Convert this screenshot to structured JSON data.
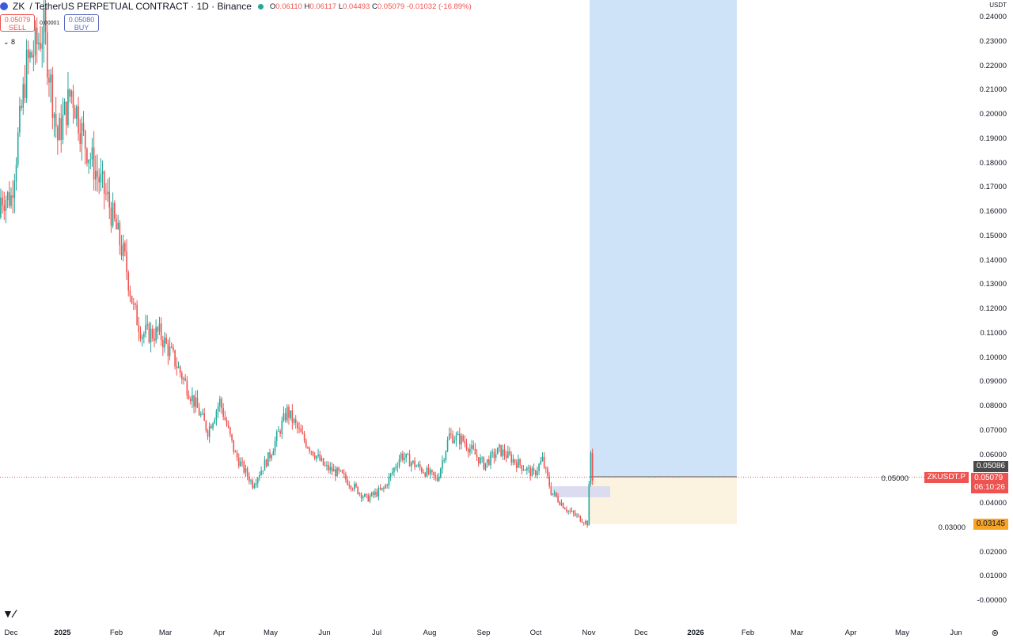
{
  "header": {
    "symbol": "ZK",
    "title": "/ TetherUS PERPETUAL CONTRACT · 1D · Binance",
    "open": "0.06110",
    "high": "0.06117",
    "low": "0.04493",
    "close": "0.05079",
    "change": "-0.01032 (-16.89%)",
    "o_label": "O",
    "h_label": "H",
    "l_label": "L",
    "c_label": "C"
  },
  "trade": {
    "sell_price": "0.05079",
    "sell_label": "SELL",
    "spread": "0.00001",
    "buy_price": "0.05080",
    "buy_label": "BUY",
    "collapse": "⌄ 8"
  },
  "currency": "USDT",
  "price_axis": [
    "0.24000",
    "0.23000",
    "0.22000",
    "0.21000",
    "0.20000",
    "0.19000",
    "0.18000",
    "0.17000",
    "0.16000",
    "0.15000",
    "0.14000",
    "0.13000",
    "0.12000",
    "0.11000",
    "0.10000",
    "0.09000",
    "0.08000",
    "0.07000",
    "0.06000",
    "0.05000",
    "0.04000",
    "0.03000",
    "0.02000",
    "0.01000",
    "-0.00000"
  ],
  "tags": {
    "high_marker": "0.05086",
    "symbol_tag": "ZKUSDT.P",
    "last_price": "0.05079",
    "countdown": "06:10:26",
    "stop_level": "0.03145"
  },
  "time_axis": [
    "Dec",
    "2025",
    "Feb",
    "Mar",
    "Apr",
    "May",
    "Jun",
    "Jul",
    "Aug",
    "Sep",
    "Oct",
    "Nov",
    "Dec",
    "2026",
    "Feb",
    "Mar",
    "Apr",
    "May",
    "Jun"
  ],
  "logo": "TV",
  "colors": {
    "up": "#26a69a",
    "down": "#ef5350",
    "target_zone": "#cfe3f8",
    "stop_zone": "#fbf2e0"
  },
  "chart_data": {
    "type": "candlestick",
    "ylim": [
      0,
      0.24
    ],
    "anchors": [
      [
        "2024-12-01",
        0.166
      ],
      [
        "2024-12-10",
        0.22
      ],
      [
        "2024-12-20",
        0.235
      ],
      [
        "2024-12-28",
        0.19
      ],
      [
        "2025-01-05",
        0.21
      ],
      [
        "2025-01-12",
        0.19
      ],
      [
        "2025-01-20",
        0.175
      ],
      [
        "2025-01-26",
        0.165
      ],
      [
        "2025-02-05",
        0.14
      ],
      [
        "2025-02-10",
        0.12
      ],
      [
        "2025-02-15",
        0.11
      ],
      [
        "2025-02-25",
        0.11
      ],
      [
        "2025-03-05",
        0.1
      ],
      [
        "2025-03-15",
        0.085
      ],
      [
        "2025-03-25",
        0.07
      ],
      [
        "2025-04-01",
        0.082
      ],
      [
        "2025-04-10",
        0.06
      ],
      [
        "2025-04-20",
        0.048
      ],
      [
        "2025-04-30",
        0.06
      ],
      [
        "2025-05-10",
        0.078
      ],
      [
        "2025-05-20",
        0.066
      ],
      [
        "2025-06-01",
        0.055
      ],
      [
        "2025-06-10",
        0.052
      ],
      [
        "2025-06-25",
        0.042
      ],
      [
        "2025-07-05",
        0.046
      ],
      [
        "2025-07-15",
        0.06
      ],
      [
        "2025-07-25",
        0.055
      ],
      [
        "2025-08-05",
        0.05
      ],
      [
        "2025-08-12",
        0.068
      ],
      [
        "2025-08-20",
        0.066
      ],
      [
        "2025-09-01",
        0.056
      ],
      [
        "2025-09-10",
        0.062
      ],
      [
        "2025-09-20",
        0.057
      ],
      [
        "2025-09-30",
        0.052
      ],
      [
        "2025-10-05",
        0.058
      ],
      [
        "2025-10-10",
        0.045
      ],
      [
        "2025-10-20",
        0.037
      ],
      [
        "2025-10-31",
        0.032
      ],
      [
        "2025-11-02",
        0.061
      ],
      [
        "2025-11-03",
        0.05079
      ]
    ],
    "position": {
      "entry": 0.05079,
      "stop": 0.03145,
      "target": 0.24
    }
  }
}
